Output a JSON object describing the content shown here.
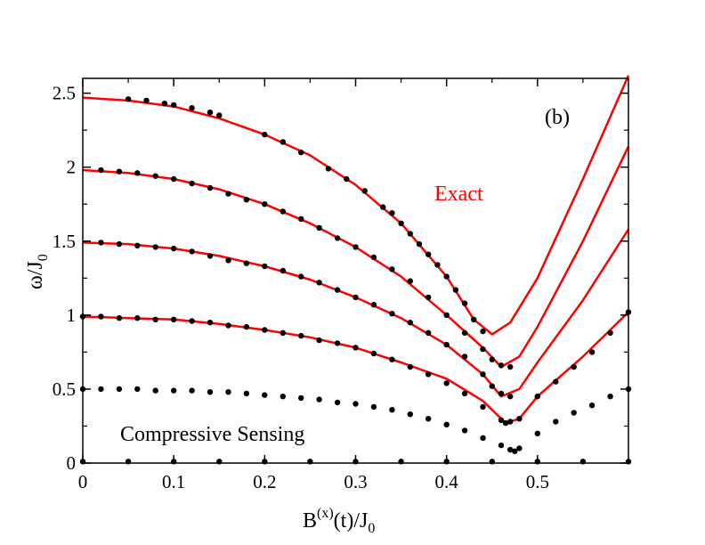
{
  "chart_data": {
    "type": "line",
    "title": "",
    "panel_label": "(b)",
    "xlabel": "B",
    "xlabel_sup": "(x)",
    "xlabel_rest": "(t)/J",
    "xlabel_sub": "0",
    "ylabel": "ω/J",
    "ylabel_sub": "0",
    "xlim": [
      0,
      0.6
    ],
    "ylim": [
      0,
      2.6
    ],
    "x_ticks": [
      0,
      0.1,
      0.2,
      0.3,
      0.4,
      0.5
    ],
    "x_tick_labels": [
      "0",
      "0.1",
      "0.2",
      "0.3",
      "0.4",
      "0.5"
    ],
    "y_ticks": [
      0,
      0.5,
      1,
      1.5,
      2,
      2.5
    ],
    "y_tick_labels": [
      "0",
      "0.5",
      "1",
      "1.5",
      "2",
      "2.5"
    ],
    "grid": false,
    "colors": {
      "exact": "#ff0000",
      "cs": "#000000",
      "axis": "#000000"
    },
    "annotations": [
      {
        "text": "Exact",
        "color": "#ff0000",
        "at_data": [
          0.42,
          1.85
        ]
      },
      {
        "text": "Compressive Sensing",
        "color": "#000000",
        "at_data": [
          0.04,
          0.17
        ]
      }
    ],
    "series": [
      {
        "name": "Exact",
        "style": "line",
        "description": "level ω = 2.5 curve",
        "x": [
          0,
          0.05,
          0.1,
          0.15,
          0.2,
          0.25,
          0.3,
          0.35,
          0.4,
          0.43,
          0.45,
          0.47,
          0.5,
          0.55,
          0.6
        ],
        "y": [
          2.47,
          2.45,
          2.41,
          2.33,
          2.22,
          2.08,
          1.88,
          1.62,
          1.26,
          0.97,
          0.87,
          0.95,
          1.25,
          1.92,
          2.62
        ]
      },
      {
        "name": "Exact",
        "style": "line",
        "description": "level ω = 2 curve",
        "x": [
          0,
          0.05,
          0.1,
          0.15,
          0.2,
          0.25,
          0.3,
          0.35,
          0.4,
          0.44,
          0.46,
          0.48,
          0.5,
          0.55,
          0.6
        ],
        "y": [
          1.98,
          1.96,
          1.92,
          1.85,
          1.75,
          1.62,
          1.46,
          1.26,
          1.0,
          0.78,
          0.65,
          0.72,
          0.92,
          1.5,
          2.14
        ]
      },
      {
        "name": "Exact",
        "style": "line",
        "description": "level ω = 1.5 curve",
        "x": [
          0,
          0.05,
          0.1,
          0.15,
          0.2,
          0.25,
          0.3,
          0.35,
          0.4,
          0.44,
          0.46,
          0.48,
          0.5,
          0.55,
          0.6
        ],
        "y": [
          1.49,
          1.48,
          1.45,
          1.4,
          1.33,
          1.24,
          1.12,
          0.98,
          0.8,
          0.6,
          0.45,
          0.5,
          0.68,
          1.1,
          1.58
        ]
      },
      {
        "name": "Exact",
        "style": "line",
        "description": "level ω = 1 curve",
        "x": [
          0,
          0.05,
          0.1,
          0.15,
          0.2,
          0.25,
          0.3,
          0.35,
          0.4,
          0.44,
          0.465,
          0.48,
          0.5,
          0.55,
          0.6
        ],
        "y": [
          0.99,
          0.98,
          0.97,
          0.94,
          0.9,
          0.85,
          0.78,
          0.68,
          0.57,
          0.42,
          0.27,
          0.3,
          0.45,
          0.72,
          1.02
        ]
      },
      {
        "name": "Compressive Sensing",
        "style": "dots",
        "description": "extracted peaks",
        "x": [
          0.05,
          0.07,
          0.09,
          0.1,
          0.12,
          0.14,
          0.15,
          0.2,
          0.22,
          0.24,
          0.27,
          0.29,
          0.31,
          0.33,
          0.34,
          0.35,
          0.36,
          0.37,
          0.38,
          0.39,
          0.4,
          0.41,
          0.42,
          0.43,
          0.44,
          0.02,
          0.04,
          0.06,
          0.08,
          0.1,
          0.12,
          0.14,
          0.16,
          0.18,
          0.2,
          0.22,
          0.24,
          0.26,
          0.28,
          0.3,
          0.32,
          0.34,
          0.36,
          0.38,
          0.4,
          0.42,
          0.44,
          0.45,
          0.46,
          0.47,
          0.02,
          0.04,
          0.06,
          0.08,
          0.1,
          0.12,
          0.14,
          0.16,
          0.18,
          0.2,
          0.22,
          0.24,
          0.26,
          0.28,
          0.3,
          0.32,
          0.34,
          0.36,
          0.38,
          0.4,
          0.42,
          0.44,
          0.45,
          0.46,
          0.47,
          0.0,
          0.02,
          0.04,
          0.06,
          0.08,
          0.1,
          0.12,
          0.14,
          0.16,
          0.18,
          0.2,
          0.22,
          0.24,
          0.26,
          0.28,
          0.3,
          0.32,
          0.34,
          0.36,
          0.38,
          0.4,
          0.42,
          0.44,
          0.46,
          0.465,
          0.47,
          0.48,
          0.5,
          0.52,
          0.54,
          0.56,
          0.58,
          0.6,
          0.0,
          0.02,
          0.04,
          0.06,
          0.08,
          0.1,
          0.12,
          0.14,
          0.16,
          0.18,
          0.2,
          0.22,
          0.24,
          0.26,
          0.28,
          0.3,
          0.32,
          0.34,
          0.36,
          0.38,
          0.4,
          0.42,
          0.44,
          0.46,
          0.47,
          0.475,
          0.48,
          0.5,
          0.52,
          0.54,
          0.56,
          0.58,
          0.6,
          0.0,
          0.05,
          0.1,
          0.15,
          0.2,
          0.25,
          0.3,
          0.35,
          0.4,
          0.45,
          0.5,
          0.55,
          0.6
        ],
        "y": [
          2.46,
          2.45,
          2.43,
          2.42,
          2.4,
          2.37,
          2.35,
          2.22,
          2.17,
          2.1,
          1.99,
          1.92,
          1.84,
          1.73,
          1.69,
          1.62,
          1.55,
          1.48,
          1.41,
          1.34,
          1.26,
          1.17,
          1.08,
          0.97,
          0.89,
          1.98,
          1.97,
          1.96,
          1.94,
          1.92,
          1.89,
          1.86,
          1.82,
          1.78,
          1.75,
          1.7,
          1.65,
          1.59,
          1.52,
          1.46,
          1.39,
          1.31,
          1.23,
          1.12,
          1.0,
          0.88,
          0.77,
          0.7,
          0.66,
          0.65,
          1.49,
          1.48,
          1.47,
          1.46,
          1.45,
          1.43,
          1.4,
          1.37,
          1.35,
          1.33,
          1.3,
          1.26,
          1.22,
          1.17,
          1.12,
          1.07,
          1.01,
          0.95,
          0.88,
          0.8,
          0.72,
          0.6,
          0.52,
          0.47,
          0.45,
          0.99,
          0.99,
          0.98,
          0.98,
          0.97,
          0.97,
          0.96,
          0.95,
          0.93,
          0.92,
          0.9,
          0.88,
          0.86,
          0.83,
          0.81,
          0.78,
          0.74,
          0.7,
          0.65,
          0.6,
          0.54,
          0.47,
          0.38,
          0.29,
          0.27,
          0.28,
          0.3,
          0.45,
          0.55,
          0.65,
          0.75,
          0.88,
          1.02,
          0.5,
          0.5,
          0.5,
          0.5,
          0.49,
          0.49,
          0.49,
          0.48,
          0.48,
          0.47,
          0.46,
          0.45,
          0.44,
          0.43,
          0.41,
          0.4,
          0.38,
          0.36,
          0.33,
          0.3,
          0.26,
          0.22,
          0.17,
          0.12,
          0.09,
          0.08,
          0.1,
          0.2,
          0.28,
          0.34,
          0.39,
          0.45,
          0.5,
          0.01,
          0.01,
          0.01,
          0.01,
          0.01,
          0.01,
          0.01,
          0.01,
          0.01,
          0.01,
          0.01,
          0.01,
          0.01
        ]
      }
    ]
  }
}
